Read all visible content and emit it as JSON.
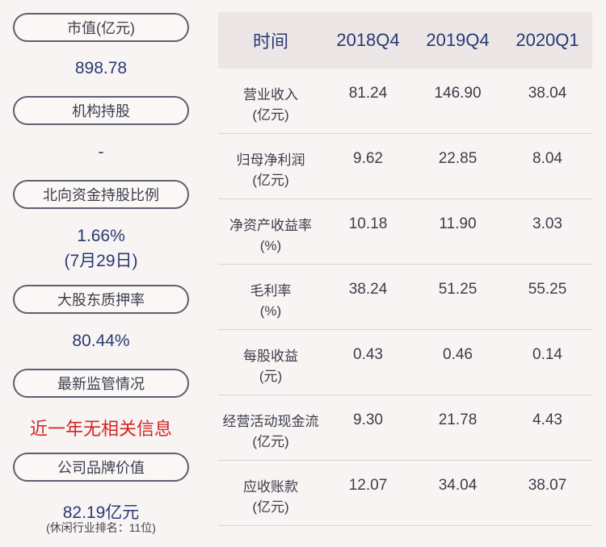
{
  "left": {
    "market_cap": {
      "label": "市值(亿元)",
      "value": "898.78"
    },
    "institutional": {
      "label": "机构持股",
      "value": "-"
    },
    "northbound": {
      "label": "北向资金持股比例",
      "value": "1.66%",
      "value2": "(7月29日)"
    },
    "pledge": {
      "label": "大股东质押率",
      "value": "80.44%"
    },
    "regulation": {
      "label": "最新监管情况",
      "value": "近一年无相关信息"
    },
    "brand": {
      "label": "公司品牌价值",
      "value": "82.19亿元",
      "note": "(休闲行业排名：11位)"
    }
  },
  "colors": {
    "accent_blue": "#283a73",
    "alert_red": "#d32323",
    "header_bg": "#ece6e6"
  },
  "table": {
    "header": [
      "时间",
      "2018Q4",
      "2019Q4",
      "2020Q1"
    ],
    "rows": [
      {
        "label1": "营业收入",
        "label2": "(亿元)",
        "values": [
          "81.24",
          "146.90",
          "38.04"
        ]
      },
      {
        "label1": "归母净利润",
        "label2": "(亿元)",
        "values": [
          "9.62",
          "22.85",
          "8.04"
        ]
      },
      {
        "label1": "净资产收益率",
        "label2": "(%)",
        "values": [
          "10.18",
          "11.90",
          "3.03"
        ]
      },
      {
        "label1": "毛利率",
        "label2": "(%)",
        "values": [
          "38.24",
          "51.25",
          "55.25"
        ]
      },
      {
        "label1": "每股收益",
        "label2": "(元)",
        "values": [
          "0.43",
          "0.46",
          "0.14"
        ]
      },
      {
        "label1": "经营活动现金流",
        "label2": "(亿元)",
        "values": [
          "9.30",
          "21.78",
          "4.43"
        ]
      },
      {
        "label1": "应收账款",
        "label2": "(亿元)",
        "values": [
          "12.07",
          "34.04",
          "38.07"
        ]
      }
    ]
  }
}
